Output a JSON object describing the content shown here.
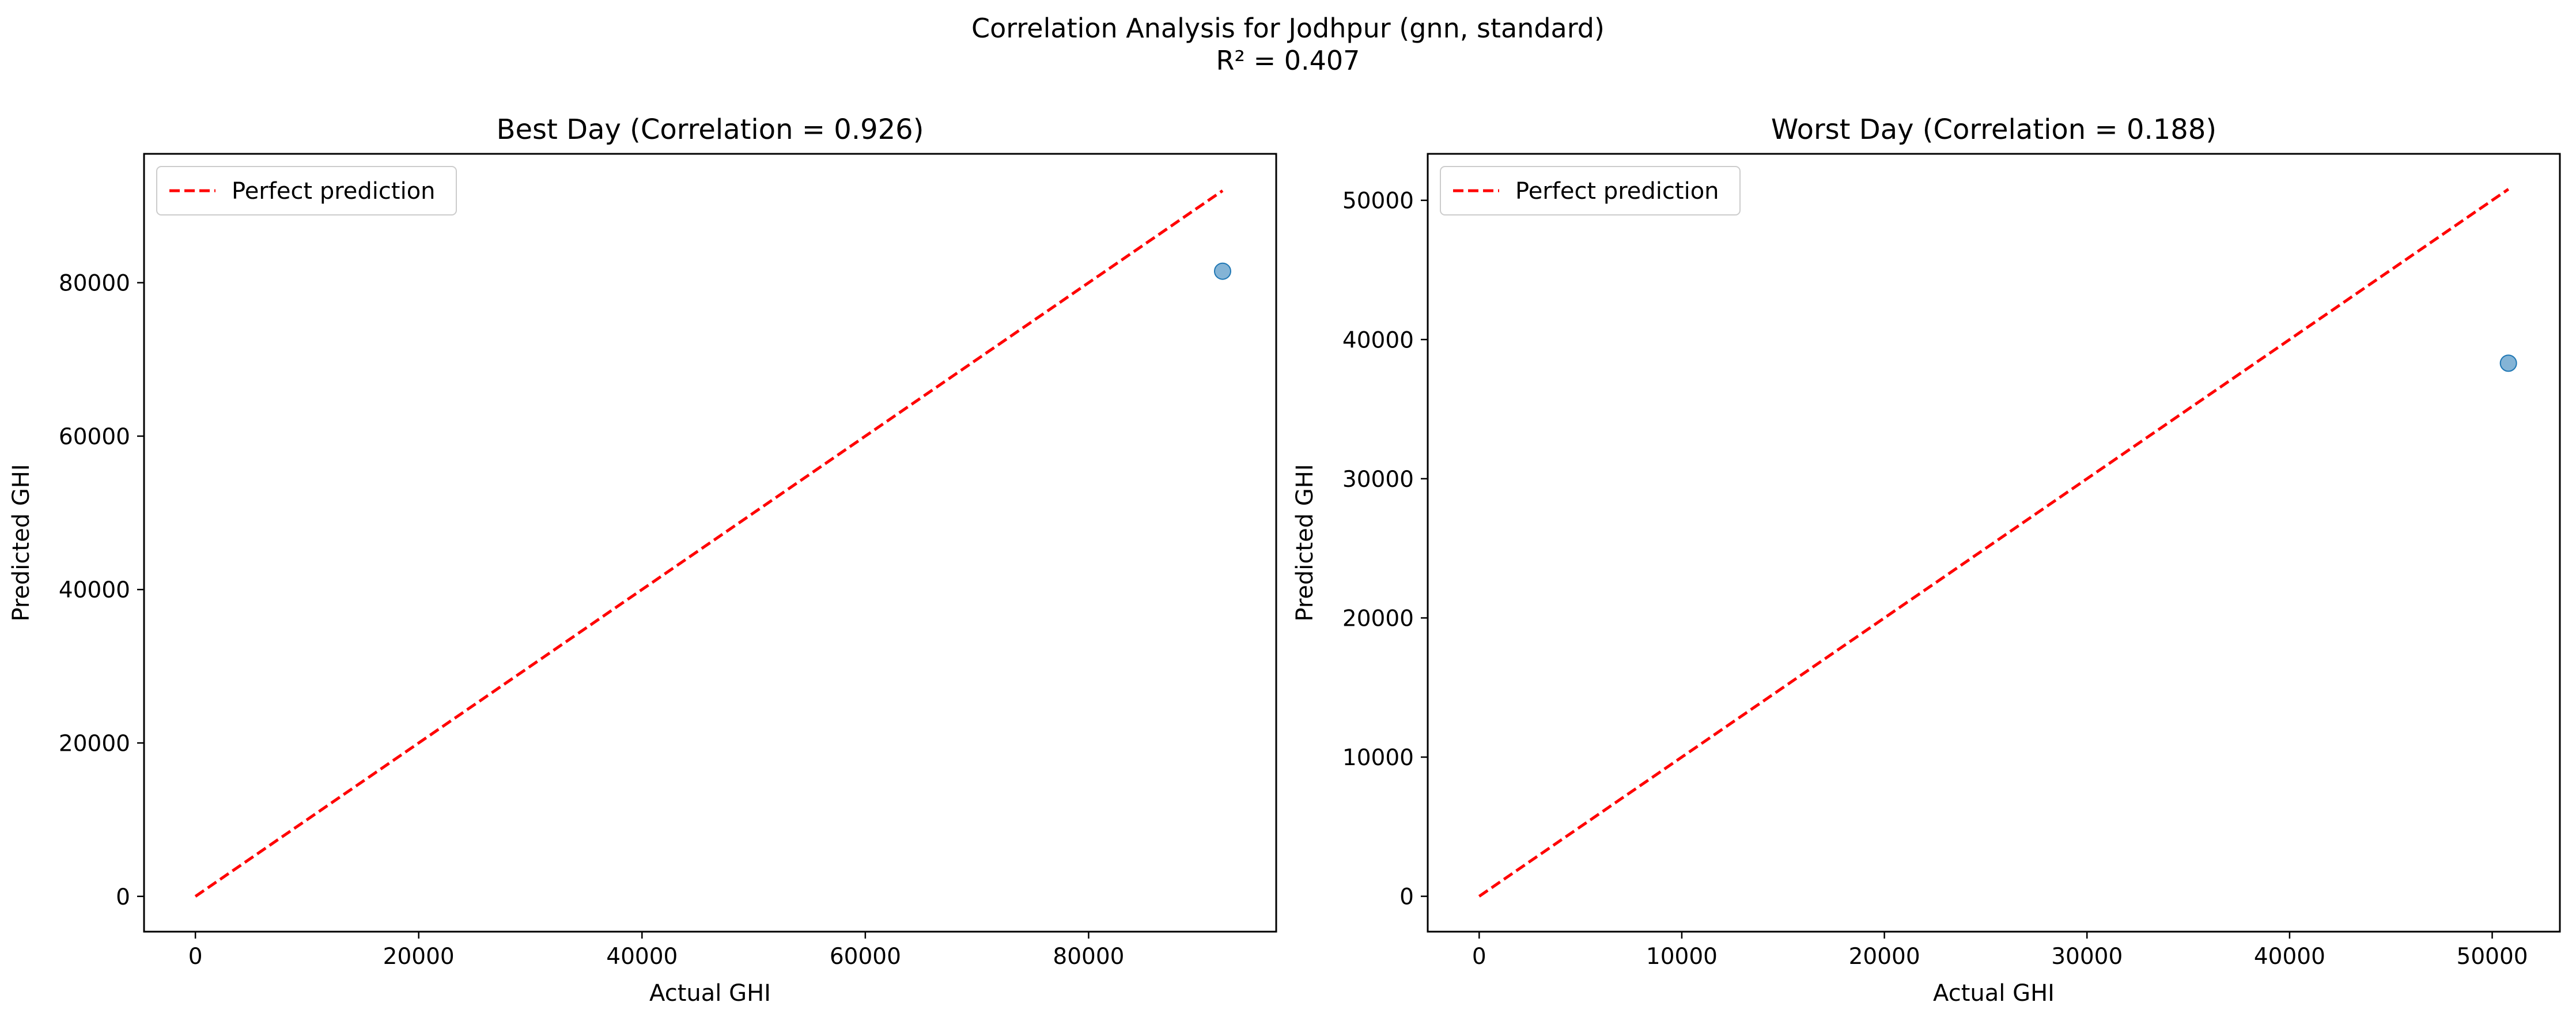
{
  "figure": {
    "suptitle_line1": "Correlation Analysis for Jodhpur (gnn, standard)",
    "suptitle_line2": "R² = 0.407"
  },
  "colors": {
    "perfect_line": "#ff0000",
    "points": "#1f77b4",
    "axes": "#000000"
  },
  "chart_data": [
    {
      "type": "scatter",
      "title": "Best Day (Correlation = 0.926)",
      "xlabel": "Actual GHI",
      "ylabel": "Predicted GHI",
      "xlim": [
        -4600,
        96800
      ],
      "ylim": [
        -4600,
        96800
      ],
      "xticks": [
        0,
        20000,
        40000,
        60000,
        80000
      ],
      "yticks": [
        0,
        20000,
        40000,
        60000,
        80000
      ],
      "xtick_labels": [
        "0",
        "20000",
        "40000",
        "60000",
        "80000"
      ],
      "ytick_labels": [
        "0",
        "20000",
        "40000",
        "60000",
        "80000"
      ],
      "legend": {
        "location": "upper-left",
        "entries": [
          "Perfect prediction"
        ]
      },
      "series": [
        {
          "name": "Perfect prediction",
          "type": "line",
          "style": "dashed",
          "x": [
            0,
            92000
          ],
          "y": [
            0,
            92000
          ]
        },
        {
          "type": "scatter",
          "x": [
            92000
          ],
          "y": [
            81500
          ]
        }
      ]
    },
    {
      "type": "scatter",
      "title": "Worst Day (Correlation = 0.188)",
      "xlabel": "Actual GHI",
      "ylabel": "Predicted GHI",
      "xlim": [
        -2540,
        53340
      ],
      "ylim": [
        -2540,
        53340
      ],
      "xticks": [
        0,
        10000,
        20000,
        30000,
        40000,
        50000
      ],
      "yticks": [
        0,
        10000,
        20000,
        30000,
        40000,
        50000
      ],
      "xtick_labels": [
        "0",
        "10000",
        "20000",
        "30000",
        "40000",
        "50000"
      ],
      "ytick_labels": [
        "0",
        "10000",
        "20000",
        "30000",
        "40000",
        "50000"
      ],
      "legend": {
        "location": "upper-left",
        "entries": [
          "Perfect prediction"
        ]
      },
      "series": [
        {
          "name": "Perfect prediction",
          "type": "line",
          "style": "dashed",
          "x": [
            0,
            50800
          ],
          "y": [
            0,
            50800
          ]
        },
        {
          "type": "scatter",
          "x": [
            50800
          ],
          "y": [
            38300
          ]
        }
      ]
    }
  ]
}
